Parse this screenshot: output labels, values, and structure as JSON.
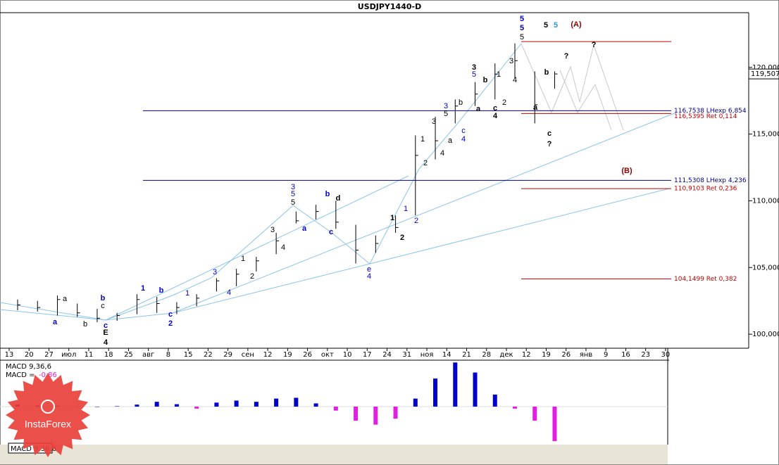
{
  "chart_data": {
    "type": "ohlc",
    "title": "USDJPY1440-D",
    "categories": [
      "13",
      "20",
      "27",
      "июл",
      "11",
      "18",
      "25",
      "авг",
      "8",
      "15",
      "22",
      "29",
      "сен",
      "12",
      "19",
      "26",
      "окт",
      "10",
      "17",
      "24",
      "31",
      "ноя",
      "14",
      "21",
      "28",
      "дек",
      "12",
      "19",
      "26",
      "янв",
      "9",
      "16",
      "23",
      "30"
    ],
    "series": [
      {
        "name": "high",
        "values": [
          102.6,
          102.5,
          102.9,
          102.3,
          101.9,
          101.6,
          103.0,
          102.8,
          102.4,
          103.0,
          104.2,
          104.9,
          105.8,
          107.6,
          109.2,
          109.7,
          110.0,
          108.2,
          107.4,
          108.9,
          114.9,
          116.3,
          117.6,
          118.9,
          120.3,
          121.8,
          119.7,
          119.7,
          null,
          null,
          null,
          null,
          null,
          null
        ]
      },
      {
        "name": "low",
        "values": [
          101.8,
          101.7,
          101.4,
          101.3,
          100.9,
          101.0,
          101.5,
          101.6,
          101.5,
          102.1,
          103.2,
          103.6,
          104.7,
          106.0,
          108.3,
          108.6,
          107.9,
          105.3,
          106.1,
          107.6,
          108.9,
          113.1,
          115.8,
          117.1,
          117.6,
          119.2,
          115.8,
          118.4,
          null,
          null,
          null,
          null,
          null,
          null
        ]
      },
      {
        "name": "close",
        "values": [
          102.2,
          102.0,
          102.6,
          101.6,
          101.2,
          101.4,
          102.6,
          102.3,
          102.0,
          102.7,
          104.0,
          104.5,
          105.5,
          107.0,
          108.5,
          109.2,
          108.4,
          106.3,
          106.8,
          108.0,
          113.4,
          114.5,
          117.1,
          118.0,
          119.5,
          120.5,
          117.2,
          119.507,
          null,
          null,
          null,
          null,
          null,
          null
        ],
        "color": "#000000"
      }
    ],
    "current_price": {
      "value": 119.507,
      "label": "119,507"
    },
    "ylim": [
      98.95,
      124.1
    ],
    "yticks": [
      {
        "value": 100,
        "label": "100,000"
      },
      {
        "value": 105,
        "label": "105,000"
      },
      {
        "value": 110,
        "label": "110,000"
      },
      {
        "value": 115,
        "label": "115,000"
      },
      {
        "value": 120,
        "label": "120,000"
      }
    ],
    "levels": [
      {
        "value": 116.7538,
        "label": "116,7538 LHexp 6,854",
        "color": "#00008b"
      },
      {
        "value": 116.5395,
        "label": "116,5395 Ret 0,114",
        "color": "#c00000"
      },
      {
        "value": 111.5308,
        "label": "111,5308 LHexp 4,236",
        "color": "#00008b"
      },
      {
        "value": 110.9103,
        "label": "110,9103 Ret 0,236",
        "color": "#c00000"
      },
      {
        "value": 104.1499,
        "label": "104,1499 Ret 0,382",
        "color": "#c00000"
      }
    ],
    "top_level": {
      "value": 121.93,
      "color": "#c00000"
    },
    "annotations": [
      {
        "text": "5",
        "color": "#0000cc"
      },
      {
        "text": "5",
        "color": "#0000cc"
      },
      {
        "text": "5",
        "color": "#000000"
      },
      {
        "text": "5",
        "color": "#000000"
      },
      {
        "text": "5",
        "color": "#1e9be0"
      },
      {
        "text": "(A)",
        "color": "#8b0000"
      },
      {
        "text": "?",
        "color": "#000000"
      },
      {
        "text": "?",
        "color": "#000000"
      },
      {
        "text": "b",
        "color": "#000000"
      },
      {
        "text": "a",
        "color": "#000000"
      },
      {
        "text": "c",
        "color": "#000000"
      },
      {
        "text": "?",
        "color": "#000000"
      },
      {
        "text": "3",
        "color": "#000000"
      },
      {
        "text": "5",
        "color": "#0000cc"
      },
      {
        "text": "b",
        "color": "#000000"
      },
      {
        "text": "1",
        "color": "#000000"
      },
      {
        "text": "3",
        "color": "#000000"
      },
      {
        "text": "4",
        "color": "#000000"
      },
      {
        "text": "2",
        "color": "#000000"
      },
      {
        "text": "c",
        "color": "#000000"
      },
      {
        "text": "4",
        "color": "#000000"
      },
      {
        "text": "a",
        "color": "#000000"
      },
      {
        "text": "b",
        "color": "#000000"
      },
      {
        "text": "3",
        "color": "#0000cc"
      },
      {
        "text": "5",
        "color": "#000000"
      },
      {
        "text": "c",
        "color": "#0000cc"
      },
      {
        "text": "4",
        "color": "#0000cc"
      },
      {
        "text": "a",
        "color": "#000000"
      },
      {
        "text": "4",
        "color": "#000000"
      },
      {
        "text": "3",
        "color": "#000000"
      },
      {
        "text": "1",
        "color": "#000000"
      },
      {
        "text": "2",
        "color": "#000000"
      },
      {
        "text": "1",
        "color": "#0000cc"
      },
      {
        "text": "2",
        "color": "#0000cc"
      },
      {
        "text": "1",
        "color": "#000000"
      },
      {
        "text": "2",
        "color": "#000000"
      },
      {
        "text": "3",
        "color": "#0000cc"
      },
      {
        "text": "5",
        "color": "#0000cc"
      },
      {
        "text": "5",
        "color": "#000000"
      },
      {
        "text": "b",
        "color": "#0000cc"
      },
      {
        "text": "d",
        "color": "#000000"
      },
      {
        "text": "a",
        "color": "#0000cc"
      },
      {
        "text": "c",
        "color": "#0000cc"
      },
      {
        "text": "e",
        "color": "#0000cc"
      },
      {
        "text": "4",
        "color": "#0000cc"
      },
      {
        "text": "3",
        "color": "#000000"
      },
      {
        "text": "4",
        "color": "#000000"
      },
      {
        "text": "1",
        "color": "#000000"
      },
      {
        "text": "2",
        "color": "#000000"
      },
      {
        "text": "3",
        "color": "#0000cc"
      },
      {
        "text": "4",
        "color": "#0000cc"
      },
      {
        "text": "1",
        "color": "#0000cc"
      },
      {
        "text": "c",
        "color": "#0000cc"
      },
      {
        "text": "2",
        "color": "#0000cc"
      },
      {
        "text": "b",
        "color": "#0000cc"
      },
      {
        "text": "1",
        "color": "#0000cc"
      },
      {
        "text": "a",
        "color": "#000000"
      },
      {
        "text": "a",
        "color": "#0000cc"
      },
      {
        "text": "b",
        "color": "#000000"
      },
      {
        "text": "b",
        "color": "#0000cc"
      },
      {
        "text": "c",
        "color": "#000000"
      },
      {
        "text": "c",
        "color": "#0000cc"
      },
      {
        "text": "E",
        "color": "#000000"
      },
      {
        "text": "4",
        "color": "#000000"
      },
      {
        "text": "(B)",
        "color": "#8b0000"
      }
    ],
    "macd": {
      "label": "MACD 9,36,6",
      "value_prefix": "MACD =",
      "current": -0.86,
      "values": [
        0.05,
        0.03,
        0.02,
        -0.01,
        0.0,
        0.01,
        0.05,
        0.12,
        0.06,
        -0.05,
        0.1,
        0.15,
        0.12,
        0.2,
        0.22,
        0.08,
        -0.1,
        -0.35,
        -0.45,
        -0.3,
        0.2,
        0.7,
        1.1,
        0.85,
        0.3,
        -0.05,
        -0.35,
        -0.86,
        null,
        null,
        null,
        null,
        null,
        null
      ],
      "positive_color": "#0000cc",
      "negative_color": "#e020e0"
    },
    "logo": "InstaForex"
  }
}
